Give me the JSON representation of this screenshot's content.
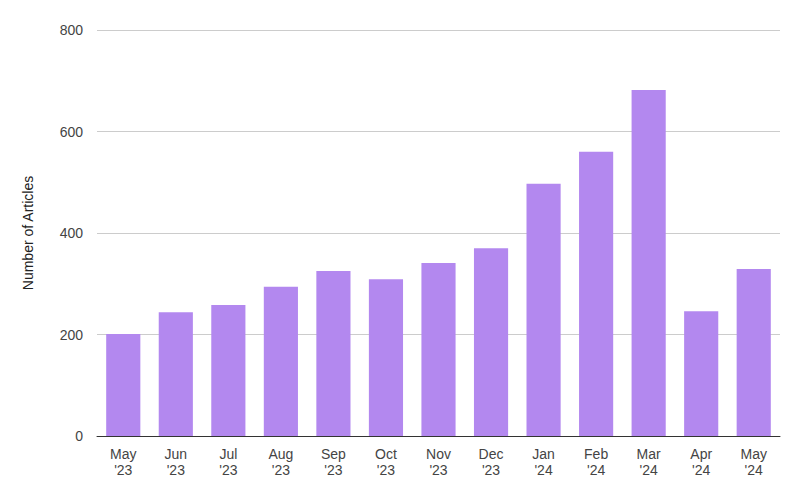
{
  "chart_data": {
    "type": "bar",
    "y_label": "Number of Articles",
    "categories": [
      "May\n'23",
      "Jun\n'23",
      "Jul\n'23",
      "Aug\n'23",
      "Sep\n'23",
      "Oct\n'23",
      "Nov\n'23",
      "Dec\n'23",
      "Jan\n'24",
      "Feb\n'24",
      "Mar\n'24",
      "Apr\n'24",
      "May\n'24"
    ],
    "values": [
      201,
      244,
      258,
      294,
      325,
      309,
      341,
      370,
      497,
      560,
      682,
      246,
      329
    ],
    "color": "#b388ef",
    "ylim": [
      0,
      800
    ],
    "yticks": [
      0,
      200,
      400,
      600,
      800
    ],
    "grid": true
  }
}
